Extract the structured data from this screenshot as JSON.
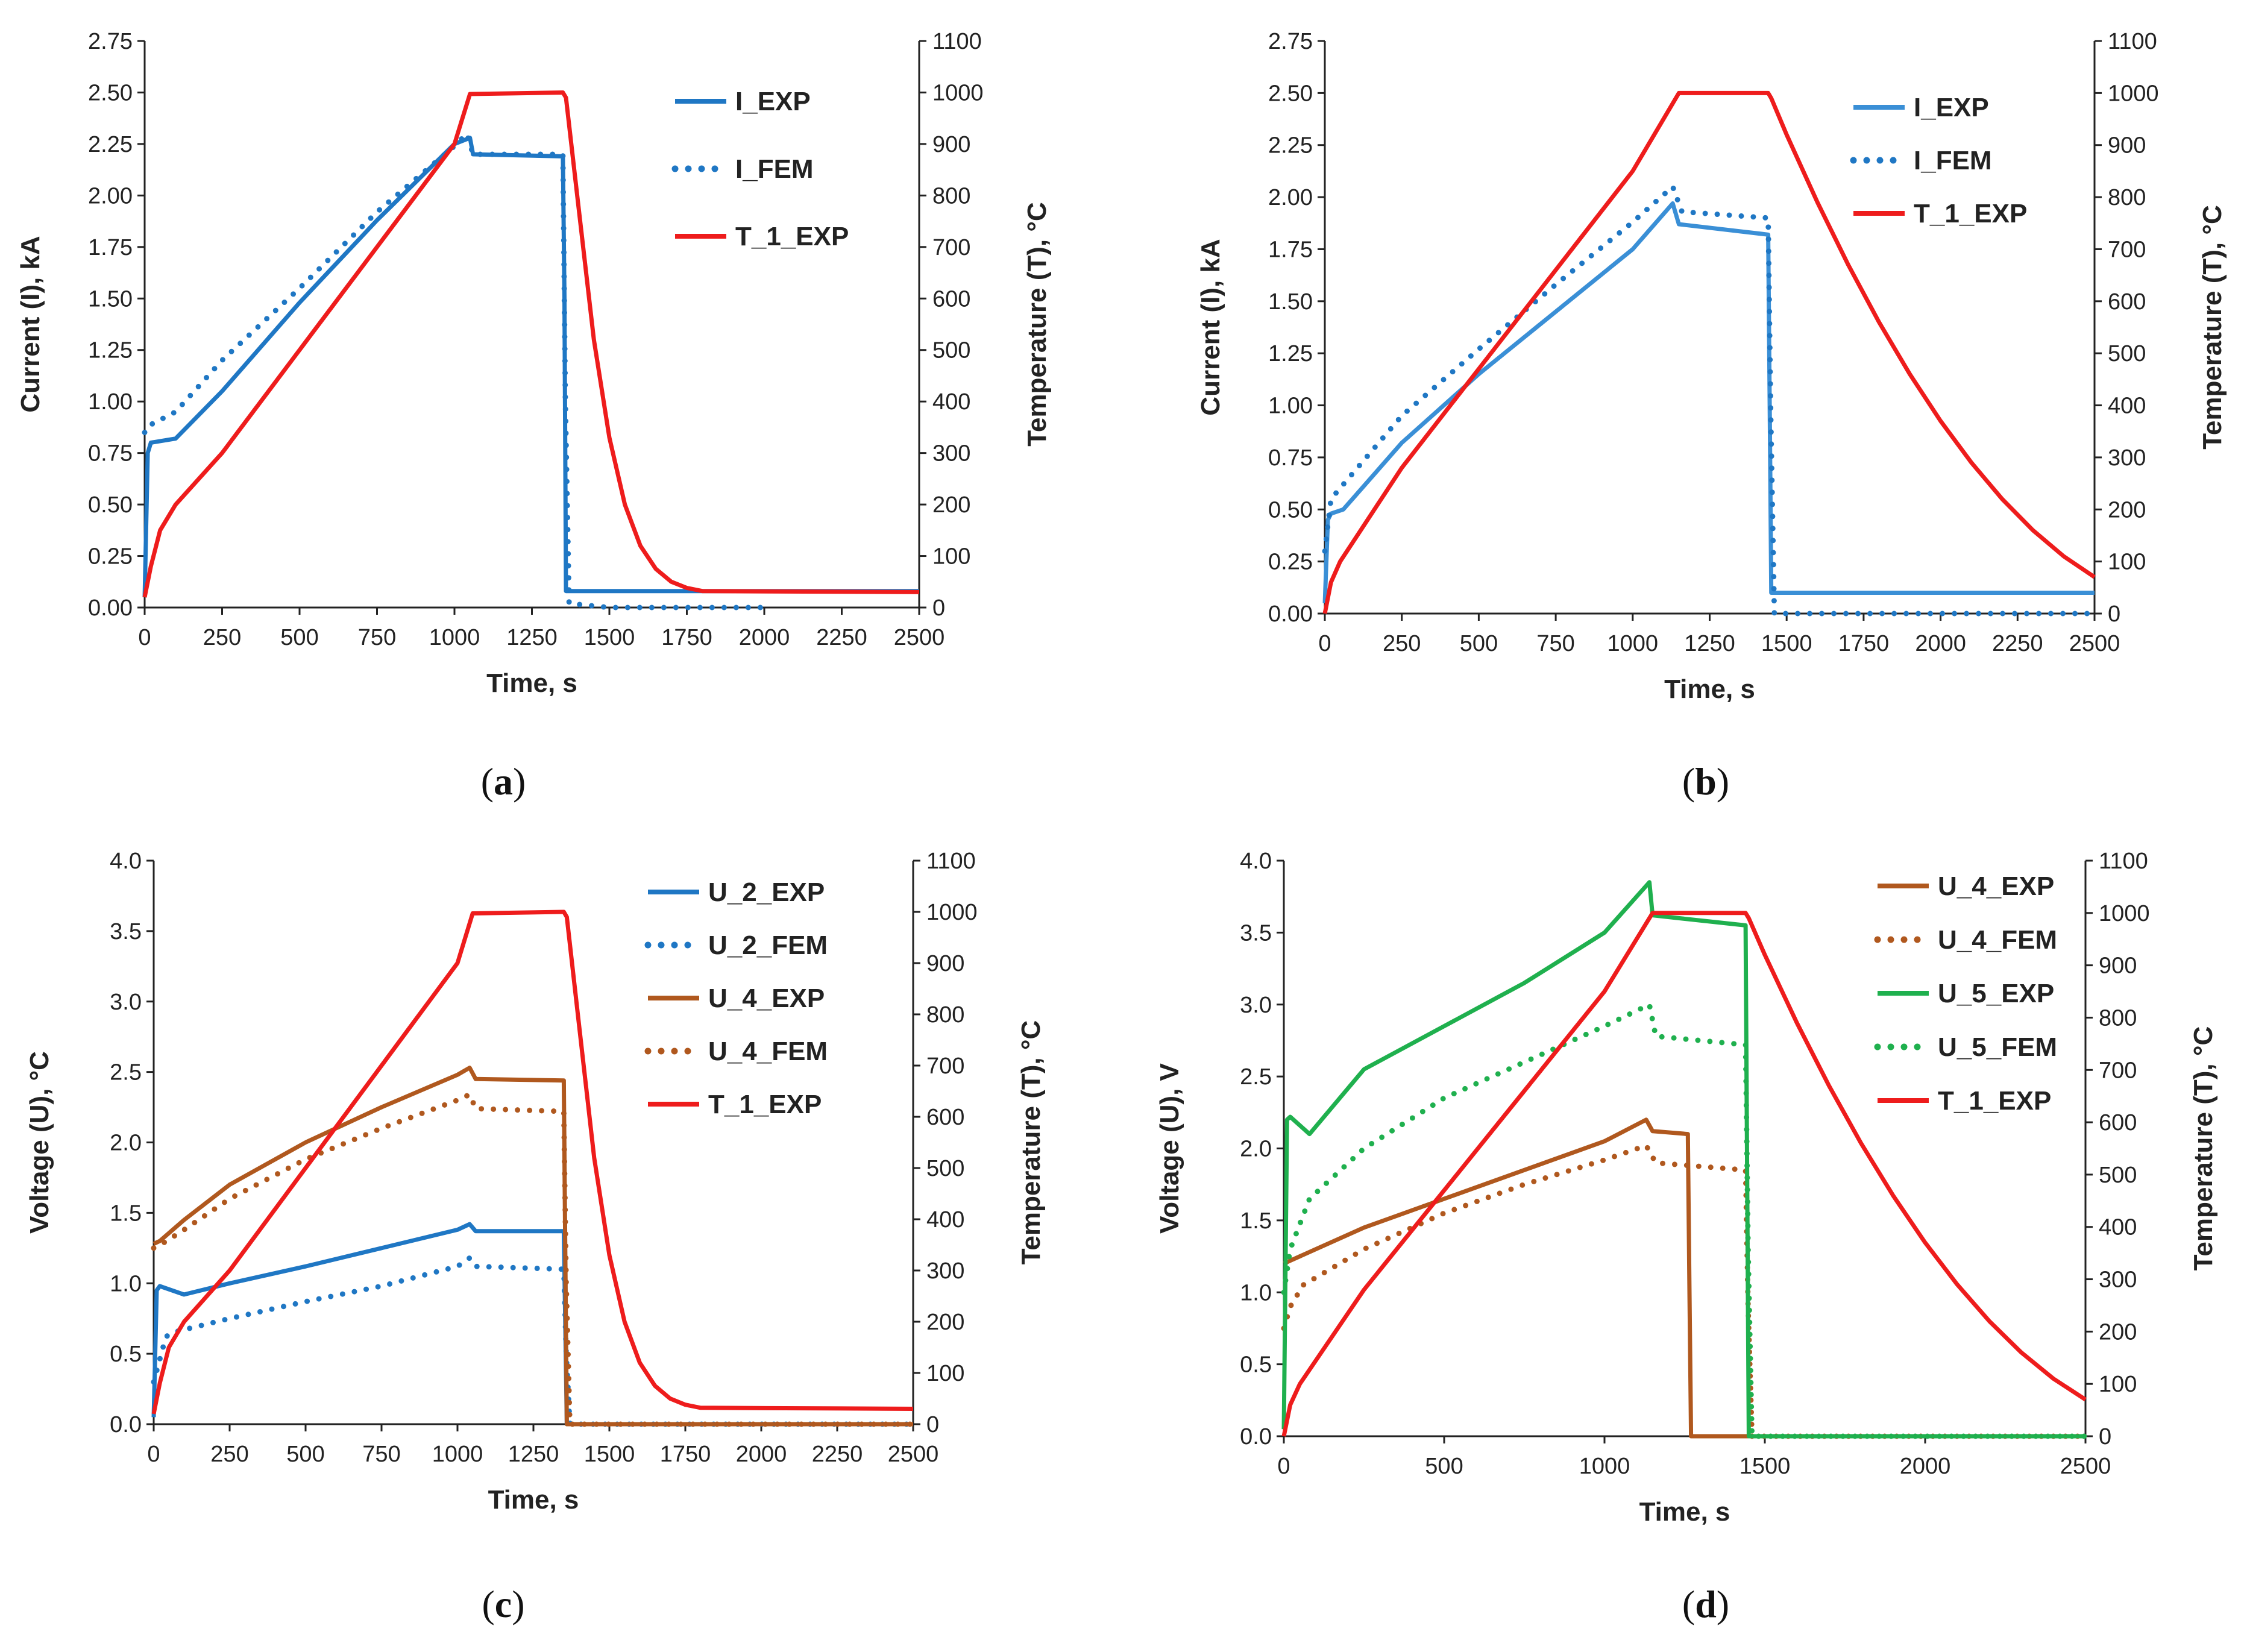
{
  "chart_data": [
    {
      "id": "a",
      "type": "line",
      "caption": "a",
      "xlabel": "Time, s",
      "ylabel": "Current  (I), kA",
      "y2label": "Temperature (T), °C",
      "xlim": [
        0,
        2500
      ],
      "ylim": [
        0,
        2.75
      ],
      "y2lim": [
        0,
        1100
      ],
      "xticks": [
        0,
        250,
        500,
        750,
        1000,
        1250,
        1500,
        1750,
        2000,
        2250,
        2500
      ],
      "xtick_labels": [
        "0",
        "250",
        "500",
        "750",
        "1000",
        "1250",
        "1500",
        "1750",
        "2000",
        "2250",
        "2500"
      ],
      "yticks": [
        0,
        0.25,
        0.5,
        0.75,
        1.0,
        1.25,
        1.5,
        1.75,
        2.0,
        2.25,
        2.5,
        2.75
      ],
      "ytick_labels": [
        "0.00",
        "0.25",
        "0.50",
        "0.75",
        "1.00",
        "1.25",
        "1.50",
        "1.75",
        "2.00",
        "2.25",
        "2.50",
        "2.75"
      ],
      "y2ticks": [
        0,
        100,
        200,
        300,
        400,
        500,
        600,
        700,
        800,
        900,
        1000,
        1100
      ],
      "y2tick_labels": [
        "0",
        "100",
        "200",
        "300",
        "400",
        "500",
        "600",
        "700",
        "800",
        "900",
        "1000",
        "1100"
      ],
      "legend_position": "top-right",
      "series": [
        {
          "name": "I_EXP",
          "axis": "left",
          "color": "#1f77c4",
          "style": "solid",
          "x": [
            0,
            10,
            20,
            100,
            250,
            500,
            750,
            1000,
            1050,
            1060,
            1350,
            1355,
            1360,
            2500
          ],
          "y": [
            0.05,
            0.75,
            0.8,
            0.82,
            1.05,
            1.48,
            1.88,
            2.25,
            2.28,
            2.2,
            2.19,
            1.5,
            0.08,
            0.08
          ]
        },
        {
          "name": "I_FEM",
          "axis": "left",
          "color": "#1f77c4",
          "style": "dotted",
          "x": [
            0,
            10,
            100,
            250,
            500,
            750,
            1000,
            1040,
            1060,
            1350,
            1358,
            1370,
            1500,
            2000
          ],
          "y": [
            0.85,
            0.88,
            0.95,
            1.2,
            1.55,
            1.92,
            2.24,
            2.3,
            2.2,
            2.2,
            1.0,
            0.02,
            0.0,
            0.0
          ]
        },
        {
          "name": "T_1_EXP",
          "axis": "right",
          "color": "#ee1c1c",
          "style": "solid",
          "x": [
            0,
            20,
            50,
            100,
            250,
            500,
            750,
            1000,
            1050,
            1350,
            1360,
            1400,
            1450,
            1500,
            1550,
            1600,
            1650,
            1700,
            1750,
            1800,
            2500
          ],
          "y": [
            20,
            80,
            150,
            200,
            300,
            500,
            700,
            900,
            997,
            1000,
            990,
            780,
            520,
            330,
            200,
            120,
            75,
            50,
            38,
            32,
            30
          ]
        }
      ]
    },
    {
      "id": "b",
      "type": "line",
      "caption": "b",
      "xlabel": "Time, s",
      "ylabel": "Current (I), kA",
      "y2label": "Temperature (T), °C",
      "xlim": [
        0,
        2500
      ],
      "ylim": [
        0,
        2.75
      ],
      "y2lim": [
        0,
        1100
      ],
      "xticks": [
        0,
        250,
        500,
        750,
        1000,
        1250,
        1500,
        1750,
        2000,
        2250,
        2500
      ],
      "xtick_labels": [
        "0",
        "250",
        "500",
        "750",
        "1000",
        "1250",
        "1500",
        "1750",
        "2000",
        "2250",
        "2500"
      ],
      "yticks": [
        0,
        0.25,
        0.5,
        0.75,
        1.0,
        1.25,
        1.5,
        1.75,
        2.0,
        2.25,
        2.5,
        2.75
      ],
      "ytick_labels": [
        "0.00",
        "0.25",
        "0.50",
        "0.75",
        "1.00",
        "1.25",
        "1.50",
        "1.75",
        "2.00",
        "2.25",
        "2.50",
        "2.75"
      ],
      "y2ticks": [
        0,
        100,
        200,
        300,
        400,
        500,
        600,
        700,
        800,
        900,
        1000,
        1100
      ],
      "y2tick_labels": [
        "0",
        "100",
        "200",
        "300",
        "400",
        "500",
        "600",
        "700",
        "800",
        "900",
        "1000",
        "1100"
      ],
      "legend_position": "top-right",
      "series": [
        {
          "name": "I_EXP",
          "axis": "left",
          "color": "#3a8fd6",
          "style": "solid",
          "x": [
            0,
            10,
            20,
            60,
            250,
            500,
            750,
            1000,
            1130,
            1150,
            1440,
            1445,
            1450,
            2500
          ],
          "y": [
            0.05,
            0.45,
            0.48,
            0.5,
            0.82,
            1.15,
            1.45,
            1.75,
            1.97,
            1.87,
            1.82,
            1.0,
            0.1,
            0.1
          ]
        },
        {
          "name": "I_FEM",
          "axis": "left",
          "color": "#1f77c4",
          "style": "dotted",
          "x": [
            0,
            20,
            60,
            250,
            500,
            750,
            1000,
            1130,
            1160,
            1440,
            1448,
            1460,
            2500
          ],
          "y": [
            0.3,
            0.55,
            0.62,
            0.95,
            1.27,
            1.58,
            1.88,
            2.05,
            1.93,
            1.9,
            1.0,
            0.0,
            0.0
          ]
        },
        {
          "name": "T_1_EXP",
          "axis": "right",
          "color": "#ee1c1c",
          "style": "solid",
          "x": [
            0,
            20,
            50,
            250,
            500,
            750,
            1000,
            1150,
            1440,
            1450,
            1500,
            1600,
            1700,
            1800,
            1900,
            2000,
            2100,
            2200,
            2300,
            2400,
            2500
          ],
          "y": [
            0,
            60,
            100,
            280,
            470,
            660,
            850,
            1000,
            1000,
            990,
            920,
            790,
            670,
            560,
            460,
            370,
            290,
            220,
            160,
            110,
            70
          ]
        }
      ]
    },
    {
      "id": "c",
      "type": "line",
      "caption": "c",
      "xlabel": "Time, s",
      "ylabel": "Voltage (U), °C",
      "y2label": "Temperature (T), °C",
      "xlim": [
        0,
        2500
      ],
      "ylim": [
        0,
        4.0
      ],
      "y2lim": [
        0,
        1100
      ],
      "xticks": [
        0,
        250,
        500,
        750,
        1000,
        1250,
        1500,
        1750,
        2000,
        2250,
        2500
      ],
      "xtick_labels": [
        "0",
        "250",
        "500",
        "750",
        "1000",
        "1250",
        "1500",
        "1750",
        "2000",
        "2250",
        "2500"
      ],
      "yticks": [
        0,
        0.5,
        1.0,
        1.5,
        2.0,
        2.5,
        3.0,
        3.5,
        4.0
      ],
      "ytick_labels": [
        "0.0",
        "0.5",
        "1.0",
        "1.5",
        "2.0",
        "2.5",
        "3.0",
        "3.5",
        "4.0"
      ],
      "y2ticks": [
        0,
        100,
        200,
        300,
        400,
        500,
        600,
        700,
        800,
        900,
        1000,
        1100
      ],
      "y2tick_labels": [
        "0",
        "100",
        "200",
        "300",
        "400",
        "500",
        "600",
        "700",
        "800",
        "900",
        "1000",
        "1100"
      ],
      "legend_position": "top-right",
      "series": [
        {
          "name": "U_2_EXP",
          "axis": "left",
          "color": "#1f77c4",
          "style": "solid",
          "x": [
            0,
            10,
            20,
            100,
            250,
            500,
            750,
            1000,
            1040,
            1060,
            1350,
            1355,
            1360,
            2500
          ],
          "y": [
            0.05,
            0.95,
            0.98,
            0.92,
            1.0,
            1.12,
            1.25,
            1.38,
            1.42,
            1.37,
            1.37,
            0.7,
            0.0,
            0.0
          ]
        },
        {
          "name": "U_2_FEM",
          "axis": "left",
          "color": "#1f77c4",
          "style": "dotted",
          "x": [
            0,
            40,
            60,
            250,
            500,
            750,
            1000,
            1040,
            1060,
            1350,
            1358,
            1370,
            2500
          ],
          "y": [
            0.3,
            0.62,
            0.65,
            0.75,
            0.87,
            0.98,
            1.12,
            1.18,
            1.12,
            1.1,
            0.5,
            0.0,
            0.0
          ]
        },
        {
          "name": "U_4_EXP",
          "axis": "left",
          "color": "#b0581e",
          "style": "solid",
          "x": [
            0,
            20,
            100,
            250,
            500,
            750,
            1000,
            1040,
            1060,
            1350,
            1355,
            1360,
            2500
          ],
          "y": [
            1.28,
            1.3,
            1.45,
            1.7,
            2.0,
            2.25,
            2.48,
            2.53,
            2.45,
            2.44,
            1.2,
            0.0,
            0.0
          ]
        },
        {
          "name": "U_4_FEM",
          "axis": "left",
          "color": "#b0581e",
          "style": "dotted",
          "x": [
            0,
            20,
            100,
            250,
            500,
            750,
            1000,
            1040,
            1060,
            1350,
            1358,
            1370,
            2500
          ],
          "y": [
            1.25,
            1.27,
            1.38,
            1.6,
            1.88,
            2.1,
            2.3,
            2.34,
            2.24,
            2.22,
            1.0,
            0.0,
            0.0
          ]
        },
        {
          "name": "T_1_EXP",
          "axis": "right",
          "color": "#ee1c1c",
          "style": "solid",
          "x": [
            0,
            20,
            50,
            100,
            250,
            500,
            750,
            1000,
            1050,
            1350,
            1360,
            1400,
            1450,
            1500,
            1550,
            1600,
            1650,
            1700,
            1750,
            1800,
            2500
          ],
          "y": [
            20,
            80,
            150,
            200,
            300,
            500,
            700,
            900,
            997,
            1000,
            990,
            780,
            520,
            330,
            200,
            120,
            75,
            50,
            38,
            32,
            30
          ]
        }
      ]
    },
    {
      "id": "d",
      "type": "line",
      "caption": "d",
      "xlabel": "Time, s",
      "ylabel": "Voltage (U), V",
      "y2label": "Temperature (T), °C",
      "xlim": [
        0,
        2500
      ],
      "ylim": [
        0,
        4.0
      ],
      "y2lim": [
        0,
        1100
      ],
      "xticks": [
        0,
        500,
        1000,
        1500,
        2000,
        2500
      ],
      "xtick_labels": [
        "0",
        "500",
        "1000",
        "1500",
        "2000",
        "2500"
      ],
      "yticks": [
        0,
        0.5,
        1.0,
        1.5,
        2.0,
        2.5,
        3.0,
        3.5,
        4.0
      ],
      "ytick_labels": [
        "0.0",
        "0.5",
        "1.0",
        "1.5",
        "2.0",
        "2.5",
        "3.0",
        "3.5",
        "4.0"
      ],
      "y2ticks": [
        0,
        100,
        200,
        300,
        400,
        500,
        600,
        700,
        800,
        900,
        1000,
        1100
      ],
      "y2tick_labels": [
        "0",
        "100",
        "200",
        "300",
        "400",
        "500",
        "600",
        "700",
        "800",
        "900",
        "1000",
        "1100"
      ],
      "legend_position": "top-right",
      "series": [
        {
          "name": "U_4_EXP",
          "axis": "left",
          "color": "#b0581e",
          "style": "solid",
          "x": [
            0,
            20,
            100,
            250,
            500,
            750,
            1000,
            1130,
            1150,
            1260,
            1265,
            1270,
            2500
          ],
          "y": [
            1.2,
            1.22,
            1.3,
            1.45,
            1.65,
            1.85,
            2.05,
            2.2,
            2.12,
            2.1,
            1.0,
            0.0,
            0.0
          ]
        },
        {
          "name": "U_4_FEM",
          "axis": "left",
          "color": "#b0581e",
          "style": "dotted",
          "x": [
            0,
            20,
            60,
            250,
            500,
            750,
            1000,
            1130,
            1160,
            1440,
            1448,
            1460,
            2500
          ],
          "y": [
            0.75,
            0.9,
            1.05,
            1.3,
            1.55,
            1.75,
            1.92,
            2.02,
            1.9,
            1.85,
            0.9,
            0.0,
            0.0
          ]
        },
        {
          "name": "U_5_EXP",
          "axis": "left",
          "color": "#1fb04e",
          "style": "solid",
          "x": [
            0,
            10,
            20,
            80,
            250,
            500,
            750,
            1000,
            1140,
            1150,
            1440,
            1445,
            1450,
            2500
          ],
          "y": [
            0.05,
            2.2,
            2.22,
            2.1,
            2.55,
            2.85,
            3.15,
            3.5,
            3.85,
            3.62,
            3.55,
            1.8,
            0.0,
            0.0
          ]
        },
        {
          "name": "U_5_FEM",
          "axis": "left",
          "color": "#1fb04e",
          "style": "dotted",
          "x": [
            0,
            20,
            80,
            250,
            500,
            750,
            1000,
            1140,
            1160,
            1440,
            1448,
            1460,
            2500
          ],
          "y": [
            1.0,
            1.3,
            1.65,
            2.0,
            2.35,
            2.6,
            2.85,
            3.0,
            2.78,
            2.72,
            1.3,
            0.0,
            0.0
          ]
        },
        {
          "name": "T_1_EXP",
          "axis": "right",
          "color": "#ee1c1c",
          "style": "solid",
          "x": [
            0,
            20,
            50,
            250,
            500,
            750,
            1000,
            1150,
            1440,
            1450,
            1500,
            1600,
            1700,
            1800,
            1900,
            2000,
            2100,
            2200,
            2300,
            2400,
            2500
          ],
          "y": [
            0,
            60,
            100,
            280,
            470,
            660,
            850,
            1000,
            1000,
            990,
            920,
            790,
            670,
            560,
            460,
            370,
            290,
            220,
            160,
            110,
            70
          ]
        }
      ]
    }
  ]
}
